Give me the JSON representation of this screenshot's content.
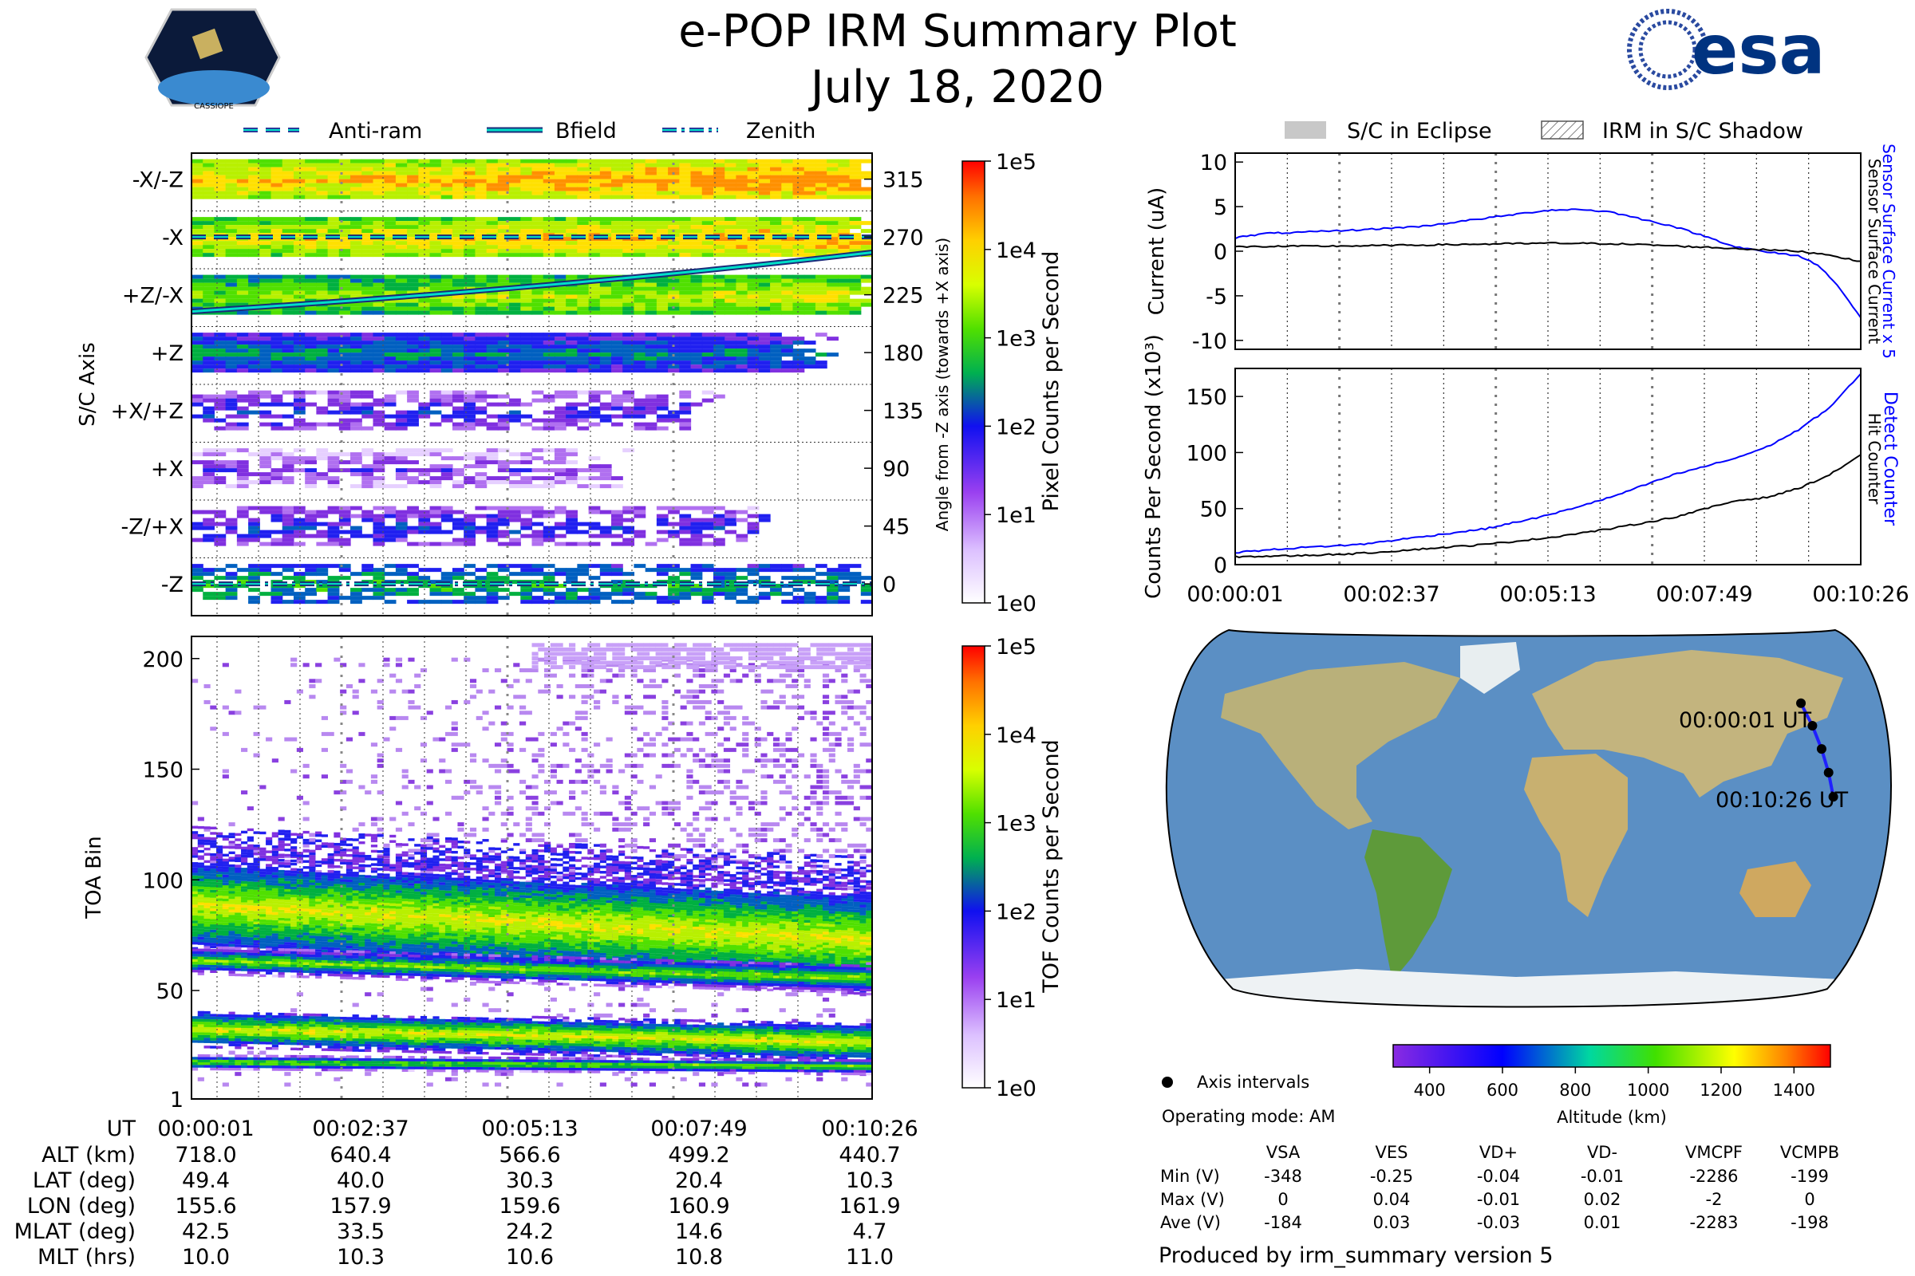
{
  "title": "e-POP IRM Summary Plot",
  "date": "July 18, 2020",
  "logos": {
    "left": "CASSIOPE",
    "right": "esa"
  },
  "legend_top": [
    "Anti-ram",
    "Bfield",
    "Zenith"
  ],
  "legend_right": [
    "S/C in Eclipse",
    "IRM in S/C Shadow"
  ],
  "colors": {
    "blue_trace": "#0000ff",
    "black_trace": "#000000",
    "eclipse": "#c8c8c8",
    "bfield": "#00e0c8",
    "dashed_lines": "#2a3a9a",
    "colormap": [
      "#ffffff",
      "#d9b8ff",
      "#8a2be2",
      "#0000ff",
      "#00c840",
      "#7cfc00",
      "#ffff00",
      "#ff8000",
      "#ff0000"
    ]
  },
  "chart_data": [
    {
      "type": "heatmap",
      "id": "pixel",
      "ylabel": "S/C Axis",
      "y_categories": [
        "-X/-Z",
        "-X",
        "+Z/-X",
        "+Z",
        "+X/+Z",
        "+X",
        "-Z/+X",
        "-Z"
      ],
      "right_axis_label": "Angle from -Z axis (towards +X axis)",
      "right_ticks": [
        315,
        270,
        225,
        180,
        135,
        90,
        45,
        0
      ],
      "colorbar_label": "Pixel Counts per Second",
      "colorbar_ticks": [
        "1e0",
        "1e1",
        "1e2",
        "1e3",
        "1e4",
        "1e5"
      ],
      "overlays": {
        "Anti-ram_angle": 270,
        "Zenith_angle": 0,
        "Bfield_angle_start": 212,
        "Bfield_angle_end": 258
      }
    },
    {
      "type": "heatmap",
      "id": "tof",
      "ylabel": "TOA Bin",
      "y_ticks": [
        200,
        150,
        100,
        50,
        1
      ],
      "ylim": [
        1,
        210
      ],
      "colorbar_label": "TOF Counts per Second",
      "colorbar_ticks": [
        "1e0",
        "1e1",
        "1e2",
        "1e3",
        "1e4",
        "1e5"
      ],
      "bands": [
        {
          "start": 88,
          "end": 72,
          "width": 22,
          "level": 3
        },
        {
          "start": 63,
          "end": 55,
          "width": 6,
          "level": 2
        },
        {
          "start": 32,
          "end": 26,
          "width": 8,
          "level": 3
        },
        {
          "start": 17,
          "end": 15,
          "width": 3,
          "level": 2
        }
      ]
    },
    {
      "type": "line",
      "id": "current",
      "ylabel": "Current (uA)",
      "ylim": [
        -11,
        11
      ],
      "y_ticks": [
        10,
        5,
        0,
        -5,
        -10
      ],
      "series": [
        {
          "name": "Sensor Surface Current x 5",
          "color": "#0000ff",
          "x": [
            0,
            0.05,
            0.1,
            0.2,
            0.3,
            0.4,
            0.5,
            0.55,
            0.6,
            0.65,
            0.7,
            0.75,
            0.8,
            0.85,
            0.9,
            0.93,
            0.96,
            1.0
          ],
          "y": [
            1.5,
            2.0,
            2.1,
            2.4,
            2.8,
            3.7,
            4.6,
            4.7,
            4.4,
            3.6,
            2.8,
            1.7,
            0.5,
            -0.1,
            -0.5,
            -1.5,
            -3.5,
            -7.5
          ]
        },
        {
          "name": "Sensor Surface Current",
          "color": "#000000",
          "x": [
            0,
            0.2,
            0.4,
            0.5,
            0.6,
            0.7,
            0.8,
            0.9,
            0.95,
            1.0
          ],
          "y": [
            0.5,
            0.6,
            0.8,
            0.9,
            0.85,
            0.6,
            0.3,
            0.0,
            -0.4,
            -1.2
          ]
        }
      ]
    },
    {
      "type": "line",
      "id": "counts",
      "ylabel": "Counts Per Second (x10³)",
      "ylim": [
        0,
        175
      ],
      "y_ticks": [
        150,
        100,
        50,
        0
      ],
      "x_tick_labels": [
        "00:00:01",
        "00:02:37",
        "00:05:13",
        "00:07:49",
        "00:10:26"
      ],
      "series": [
        {
          "name": "Detect Counter",
          "color": "#0000ff",
          "x": [
            0,
            0.1,
            0.2,
            0.3,
            0.4,
            0.5,
            0.6,
            0.7,
            0.8,
            0.85,
            0.9,
            0.95,
            1.0
          ],
          "y": [
            11,
            15,
            18,
            25,
            32,
            44,
            60,
            80,
            95,
            105,
            120,
            140,
            170
          ]
        },
        {
          "name": "Hit Counter",
          "color": "#000000",
          "x": [
            0,
            0.1,
            0.2,
            0.3,
            0.4,
            0.5,
            0.6,
            0.7,
            0.8,
            0.85,
            0.9,
            0.95,
            1.0
          ],
          "y": [
            7,
            8,
            10,
            14,
            18,
            24,
            32,
            42,
            57,
            60,
            68,
            80,
            98
          ]
        }
      ]
    },
    {
      "type": "scatter",
      "id": "map",
      "projection": "Robinson",
      "track": {
        "lat": [
          49.4,
          40.0,
          30.3,
          20.4,
          10.3
        ],
        "lon": [
          155.6,
          157.9,
          159.6,
          160.9,
          161.9
        ]
      },
      "start_label": "00:00:01 UT",
      "end_label": "00:10:26 UT",
      "legend_label": "Axis intervals",
      "altitude_colorbar": {
        "label": "Altitude (km)",
        "ticks": [
          400,
          600,
          800,
          1000,
          1200,
          1400
        ],
        "range": [
          300,
          1500
        ]
      }
    }
  ],
  "table_bottom": {
    "header": [
      "UT",
      "00:00:01",
      "00:02:37",
      "00:05:13",
      "00:07:49",
      "00:10:26"
    ],
    "rows": [
      [
        "ALT (km)",
        "718.0",
        "640.4",
        "566.6",
        "499.2",
        "440.7"
      ],
      [
        "LAT (deg)",
        "49.4",
        "40.0",
        "30.3",
        "20.4",
        "10.3"
      ],
      [
        "LON (deg)",
        "155.6",
        "157.9",
        "159.6",
        "160.9",
        "161.9"
      ],
      [
        "MLAT (deg)",
        "42.5",
        "33.5",
        "24.2",
        "14.6",
        "4.7"
      ],
      [
        "MLT (hrs)",
        "10.0",
        "10.3",
        "10.6",
        "10.8",
        "11.0"
      ]
    ]
  },
  "operating_mode": "Operating mode: AM",
  "volt_table": {
    "columns": [
      "VSA",
      "VES",
      "VD+",
      "VD-",
      "VMCPF",
      "VCMPB"
    ],
    "rows": [
      {
        "label": "Min (V)",
        "values": [
          "-348",
          "-0.25",
          "-0.04",
          "-0.01",
          "-2286",
          "-199"
        ]
      },
      {
        "label": "Max (V)",
        "values": [
          "0",
          "0.04",
          "-0.01",
          "0.02",
          "-2",
          "0"
        ]
      },
      {
        "label": "Ave (V)",
        "values": [
          "-184",
          "0.03",
          "-0.03",
          "0.01",
          "-2283",
          "-198"
        ]
      }
    ]
  },
  "footer": "Produced by irm_summary version 5"
}
